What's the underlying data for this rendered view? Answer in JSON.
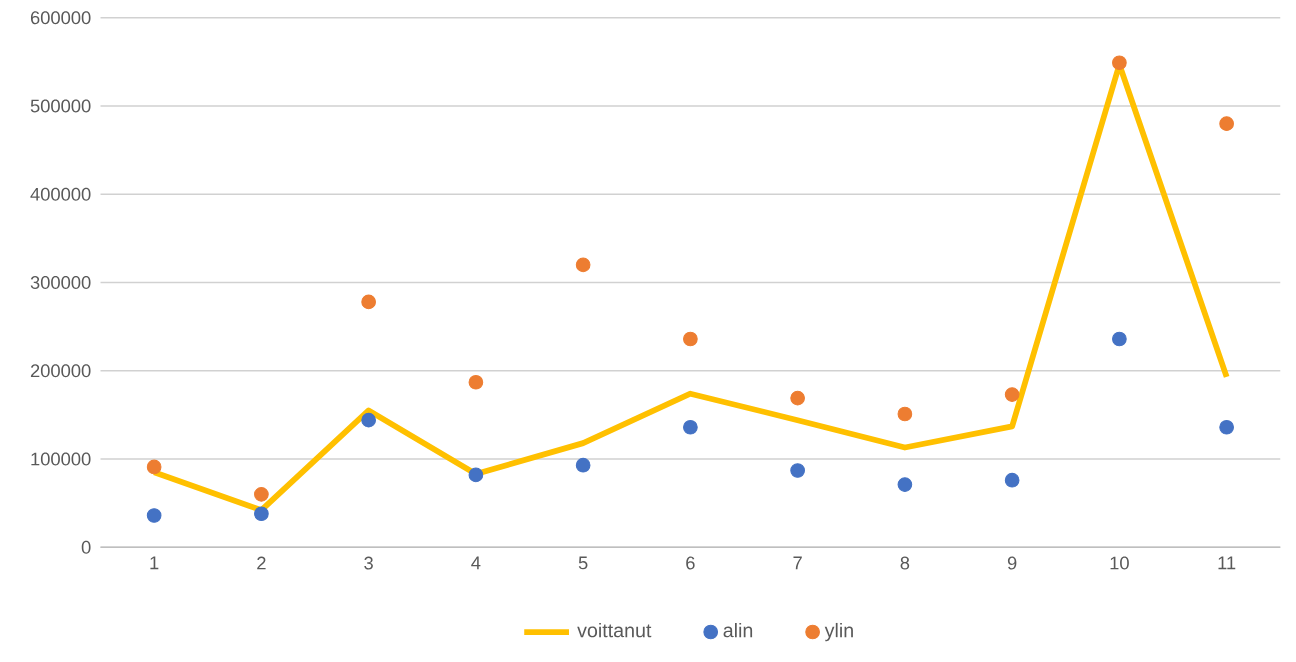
{
  "chart_data": {
    "type": "line",
    "categories": [
      "1",
      "2",
      "3",
      "4",
      "5",
      "6",
      "7",
      "8",
      "9",
      "10",
      "11"
    ],
    "series": [
      {
        "name": "voittanut",
        "color": "#ffc000",
        "values": [
          85000,
          42000,
          155000,
          83000,
          118000,
          174000,
          144000,
          113000,
          137000,
          547000,
          193000
        ]
      },
      {
        "name": "alin",
        "type": "scatter",
        "color": "#4472c4",
        "values": [
          36000,
          38000,
          144000,
          82000,
          93000,
          136000,
          87000,
          71000,
          76000,
          236000,
          136000
        ]
      },
      {
        "name": "ylin",
        "type": "scatter",
        "color": "#ed7d31",
        "values": [
          91000,
          60000,
          278000,
          187000,
          320000,
          236000,
          169000,
          151000,
          173000,
          549000,
          480000
        ]
      }
    ],
    "ylim": [
      0,
      600000
    ],
    "yticks": [
      0,
      100000,
      200000,
      300000,
      400000,
      500000,
      600000
    ],
    "grid": "y",
    "legend": "bottom"
  }
}
